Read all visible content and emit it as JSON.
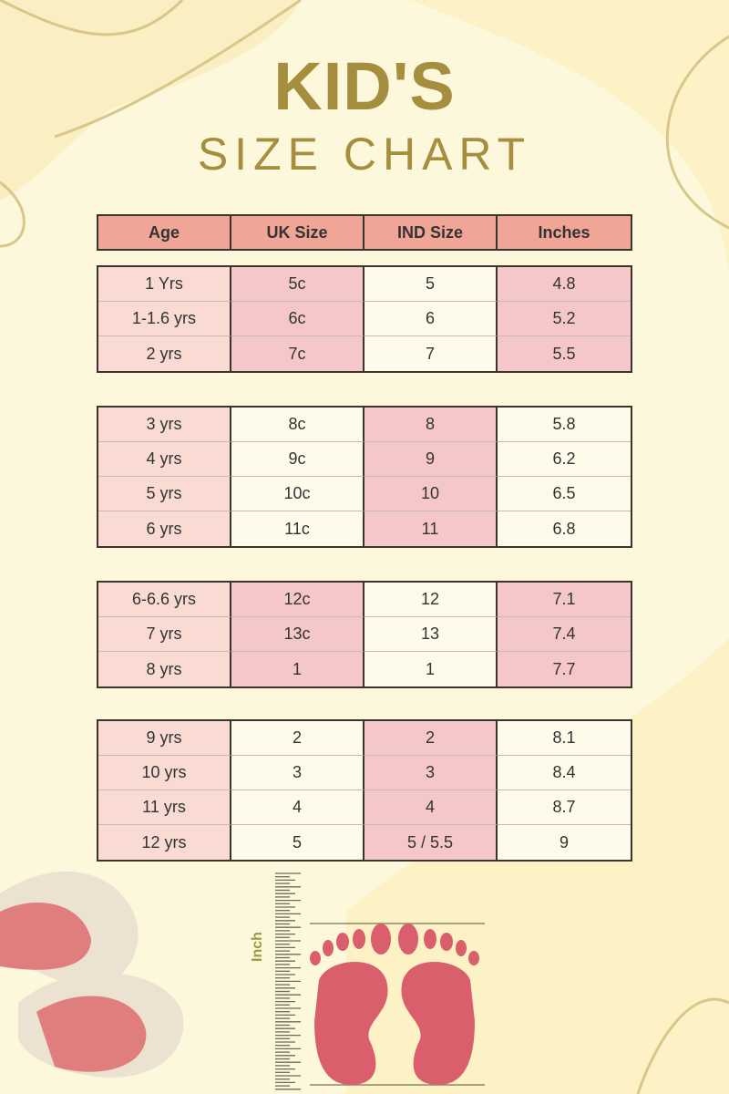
{
  "title": {
    "line1": "KID'S",
    "line2": "SIZE CHART"
  },
  "headers": [
    "Age",
    "UK Size",
    "IND Size",
    "Inches"
  ],
  "groups": [
    {
      "rows": [
        [
          "1 Yrs",
          "5c",
          "5",
          "4.8"
        ],
        [
          "1-1.6 yrs",
          "6c",
          "6",
          "5.2"
        ],
        [
          "2 yrs",
          "7c",
          "7",
          "5.5"
        ]
      ]
    },
    {
      "rows": [
        [
          "3 yrs",
          "8c",
          "8",
          "5.8"
        ],
        [
          "4 yrs",
          "9c",
          "9",
          "6.2"
        ],
        [
          "5 yrs",
          "10c",
          "10",
          "6.5"
        ],
        [
          "6 yrs",
          "11c",
          "11",
          "6.8"
        ]
      ]
    },
    {
      "rows": [
        [
          "6-6.6 yrs",
          "12c",
          "12",
          "7.1"
        ],
        [
          "7 yrs",
          "13c",
          "13",
          "7.4"
        ],
        [
          "8 yrs",
          "1",
          "1",
          "7.7"
        ]
      ]
    },
    {
      "rows": [
        [
          "9 yrs",
          "2",
          "2",
          "8.1"
        ],
        [
          "10 yrs",
          "3",
          "3",
          "8.4"
        ],
        [
          "11 yrs",
          "4",
          "4",
          "8.7"
        ],
        [
          "12 yrs",
          "5",
          "5 / 5.5",
          "9"
        ]
      ]
    }
  ],
  "ruler_label": "Inch",
  "colors": {
    "header": "#f1a597",
    "pink": "#f6c7c9",
    "light_pink": "#f9dbd4",
    "cream": "#fefbea",
    "title": "#a58e3e",
    "foot": "#d95f6c"
  }
}
